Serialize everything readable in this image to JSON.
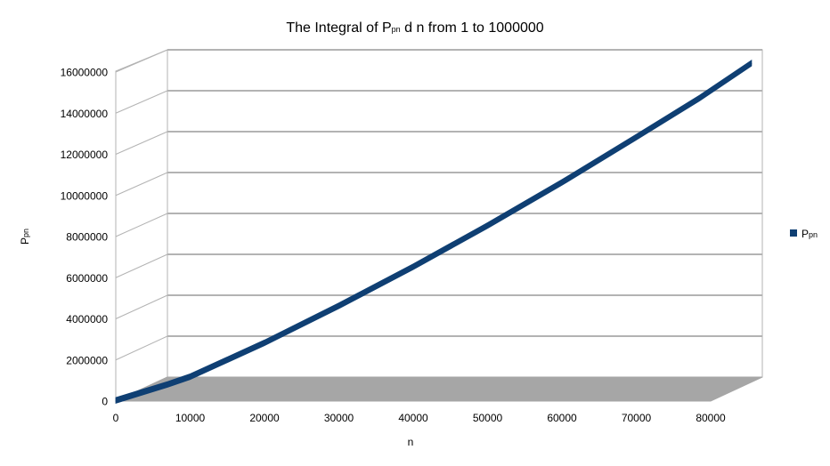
{
  "chart_data": {
    "type": "line",
    "style": "3d-ribbon",
    "title": {
      "main": "The Integral of P",
      "sub": "pn",
      "rest": " d n from 1 to 1000000"
    },
    "xlabel": "n",
    "ylabel": {
      "main": "P",
      "sub": "pn"
    },
    "xlim": [
      0,
      80000
    ],
    "ylim": [
      0,
      16000000
    ],
    "x_ticks": [
      0,
      10000,
      20000,
      30000,
      40000,
      50000,
      60000,
      70000,
      80000
    ],
    "y_ticks": [
      0,
      2000000,
      4000000,
      6000000,
      8000000,
      10000000,
      12000000,
      14000000,
      16000000
    ],
    "grid": true,
    "legend": {
      "placement": "right"
    },
    "series": [
      {
        "name": {
          "main": "P",
          "sub": "pn"
        },
        "color": "#0f3f73",
        "x": [
          0,
          7000,
          10000,
          20000,
          30000,
          40000,
          50000,
          60000,
          70000,
          78500,
          85500
        ],
        "y": [
          0,
          780000,
          1150000,
          2800000,
          4600000,
          6500000,
          8500000,
          10600000,
          12800000,
          14700000,
          16400000
        ]
      }
    ],
    "colors": {
      "floor": "#a6a6a6",
      "grid": "#b3b3b3",
      "walls": "#ffffff"
    }
  }
}
